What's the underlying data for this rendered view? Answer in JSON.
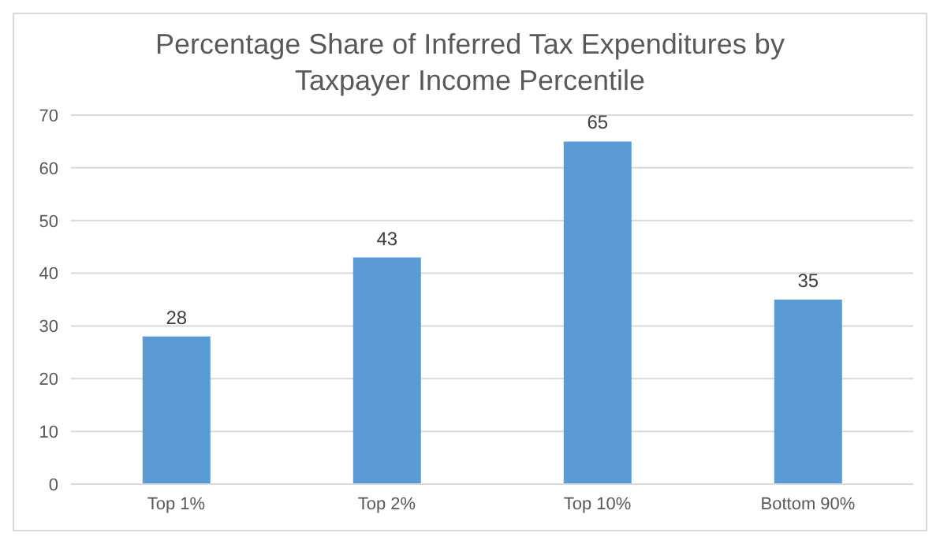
{
  "chart_data": {
    "type": "bar",
    "title": "Percentage Share of Inferred Tax Expenditures by Taxpayer Income Percentile",
    "categories": [
      "Top 1%",
      "Top 2%",
      "Top 10%",
      "Bottom 90%"
    ],
    "values": [
      28,
      43,
      65,
      35
    ],
    "color": "#5b9bd5",
    "ylim": [
      0,
      70
    ],
    "yticks": [
      0,
      10,
      20,
      30,
      40,
      50,
      60,
      70
    ],
    "grid": "y",
    "data_labels": true
  }
}
